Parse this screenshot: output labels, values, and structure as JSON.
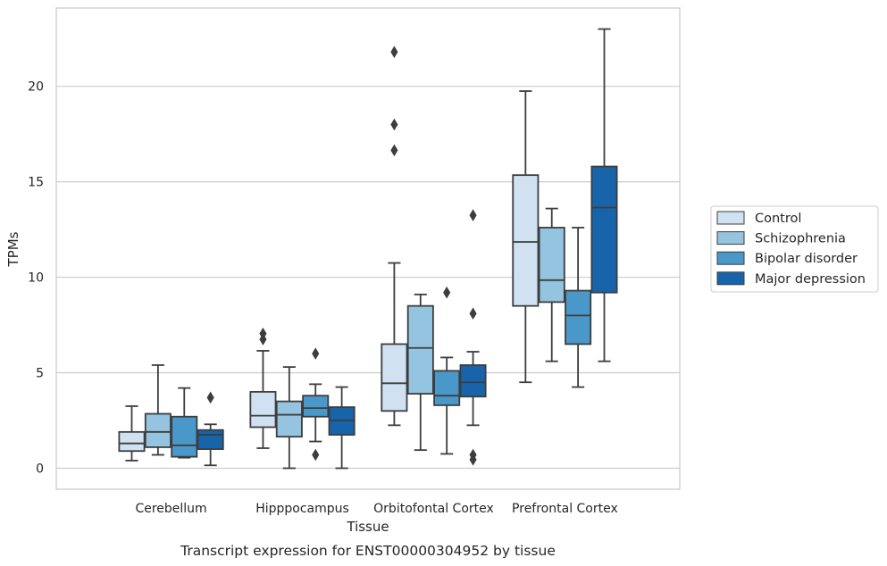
{
  "chart_data": {
    "type": "box",
    "caption": "Transcript expression for ENST00000304952 by tissue",
    "xlabel": "Tissue",
    "ylabel": "TPMs",
    "ylim": [
      -1.1,
      24.1
    ],
    "yticks": [
      0,
      5,
      10,
      15,
      20
    ],
    "grid": "horizontal",
    "legend_position": "right",
    "categories": [
      "Cerebellum",
      "Hipppocampus",
      "Orbitofontal Cortex",
      "Prefrontal Cortex"
    ],
    "series": [
      {
        "name": "Control",
        "color": "#d0e1f2",
        "boxes": [
          {
            "whislo": 0.4,
            "q1": 0.9,
            "med": 1.3,
            "q3": 1.9,
            "whishi": 3.25,
            "fliers": []
          },
          {
            "whislo": 1.05,
            "q1": 2.15,
            "med": 2.75,
            "q3": 4.0,
            "whishi": 6.15,
            "fliers": [
              6.75,
              7.05
            ]
          },
          {
            "whislo": 2.25,
            "q1": 3.0,
            "med": 4.45,
            "q3": 6.5,
            "whishi": 10.75,
            "fliers": [
              16.65,
              18.0,
              21.8
            ]
          },
          {
            "whislo": 4.5,
            "q1": 8.5,
            "med": 11.85,
            "q3": 15.35,
            "whishi": 19.75,
            "fliers": []
          }
        ]
      },
      {
        "name": "Schizophrenia",
        "color": "#94c4df",
        "boxes": [
          {
            "whislo": 0.7,
            "q1": 1.1,
            "med": 1.9,
            "q3": 2.85,
            "whishi": 5.4,
            "fliers": []
          },
          {
            "whislo": 0.0,
            "q1": 1.65,
            "med": 2.8,
            "q3": 3.5,
            "whishi": 5.3,
            "fliers": []
          },
          {
            "whislo": 0.95,
            "q1": 3.9,
            "med": 6.3,
            "q3": 8.5,
            "whishi": 9.1,
            "fliers": []
          },
          {
            "whislo": 5.6,
            "q1": 8.7,
            "med": 9.85,
            "q3": 12.6,
            "whishi": 13.6,
            "fliers": []
          }
        ]
      },
      {
        "name": "Bipolar disorder",
        "color": "#4a98c9",
        "boxes": [
          {
            "whislo": 0.55,
            "q1": 0.6,
            "med": 1.2,
            "q3": 2.7,
            "whishi": 4.2,
            "fliers": []
          },
          {
            "whislo": 1.4,
            "q1": 2.7,
            "med": 3.15,
            "q3": 3.8,
            "whishi": 4.4,
            "fliers": [
              0.7,
              6.0
            ]
          },
          {
            "whislo": 0.75,
            "q1": 3.3,
            "med": 3.8,
            "q3": 5.1,
            "whishi": 5.8,
            "fliers": [
              9.2
            ]
          },
          {
            "whislo": 4.25,
            "q1": 6.5,
            "med": 8.0,
            "q3": 9.3,
            "whishi": 12.6,
            "fliers": []
          }
        ]
      },
      {
        "name": "Major depression",
        "color": "#1764ab",
        "boxes": [
          {
            "whislo": 0.15,
            "q1": 1.0,
            "med": 1.75,
            "q3": 2.0,
            "whishi": 2.3,
            "fliers": [
              3.7
            ]
          },
          {
            "whislo": 0.0,
            "q1": 1.75,
            "med": 2.5,
            "q3": 3.2,
            "whishi": 4.25,
            "fliers": []
          },
          {
            "whislo": 2.25,
            "q1": 3.75,
            "med": 4.5,
            "q3": 5.4,
            "whishi": 6.1,
            "fliers": [
              0.45,
              0.7,
              8.1,
              13.25
            ]
          },
          {
            "whislo": 5.6,
            "q1": 9.2,
            "med": 13.65,
            "q3": 15.8,
            "whishi": 23.0,
            "fliers": []
          }
        ]
      }
    ]
  }
}
